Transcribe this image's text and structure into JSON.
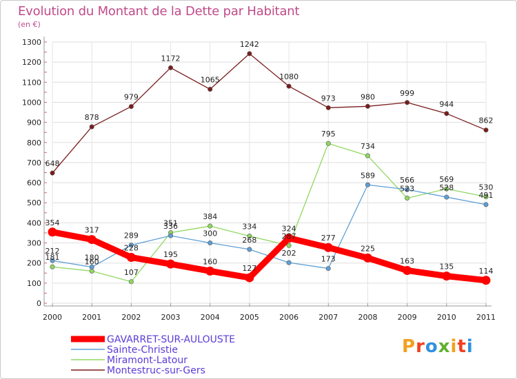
{
  "chart_data": {
    "type": "line",
    "title": "Evolution du Montant de la Dette par Habitant",
    "subtitle": "(en €)",
    "x": [
      "2000",
      "2001",
      "2002",
      "2003",
      "2004",
      "2005",
      "2006",
      "2007",
      "2008",
      "2009",
      "2010",
      "2011"
    ],
    "ylim": [
      0,
      1300
    ],
    "yticks": [
      0,
      100,
      200,
      300,
      400,
      500,
      600,
      700,
      800,
      900,
      1000,
      1100,
      1200,
      1300
    ],
    "grid": true,
    "legend_position": "bottom-left",
    "series": [
      {
        "name": "GAVARRET-SUR-AULOUSTE",
        "color": "#ff0000",
        "values": [
          354,
          317,
          228,
          195,
          160,
          127,
          324,
          277,
          225,
          163,
          135,
          114
        ]
      },
      {
        "name": "Sainte-Christie",
        "color": "#5f9fd6",
        "values": [
          212,
          180,
          289,
          336,
          300,
          268,
          202,
          173,
          589,
          566,
          528,
          491
        ]
      },
      {
        "name": "Miramont-Latour",
        "color": "#90d860",
        "values": [
          181,
          160,
          107,
          351,
          384,
          334,
          287,
          795,
          734,
          523,
          569,
          530
        ]
      },
      {
        "name": "Montestruc-sur-Gers",
        "color": "#7a1c1c",
        "values": [
          648,
          878,
          979,
          1172,
          1065,
          1242,
          1080,
          973,
          980,
          999,
          944,
          862
        ]
      }
    ]
  },
  "logo": {
    "text": "Proxiti"
  }
}
